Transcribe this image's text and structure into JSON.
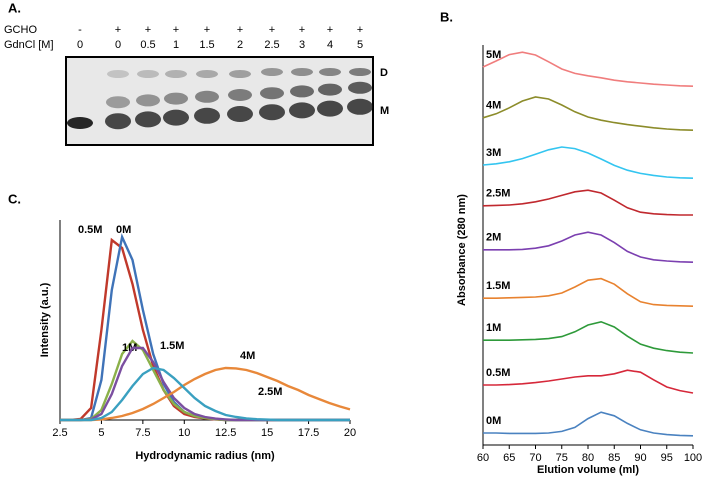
{
  "gel": {
    "title": "A.",
    "rows": [
      {
        "label": "GCHO",
        "lanes": [
          "-",
          "+",
          "+",
          "+",
          "+",
          "+",
          "+",
          "+",
          "+",
          "+"
        ]
      },
      {
        "label": "GdnCl [M]",
        "lanes": [
          "0",
          "0",
          "0.5",
          "1",
          "1.5",
          "2",
          "2.5",
          "3",
          "4",
          "5"
        ]
      }
    ],
    "band_labels": [
      "D",
      "M"
    ]
  },
  "chart_data": [
    {
      "type": "line",
      "title": "B.",
      "x_label": "Elution volume (ml)",
      "y_label": "Absorbance (280 nm)",
      "x": [
        60,
        62.5,
        65,
        67.5,
        70,
        72.5,
        75,
        77.5,
        80,
        82.5,
        85,
        87.5,
        90,
        92.5,
        95,
        97.5,
        100
      ],
      "xlim": [
        60,
        100
      ],
      "xticks": [
        60,
        65,
        70,
        75,
        80,
        85,
        90,
        95,
        100
      ],
      "ylim": [
        0,
        100
      ],
      "series": [
        {
          "name": "5M",
          "color": "#f07d7d",
          "values": [
            94.5,
            96.0,
            97.6,
            98.2,
            97.5,
            95.8,
            94.0,
            92.9,
            92.3,
            91.8,
            91.2,
            90.8,
            90.5,
            90.2,
            90.0,
            89.8,
            89.7
          ]
        },
        {
          "name": "4M",
          "color": "#8c8c2a",
          "values": [
            81.8,
            82.8,
            84.3,
            86.0,
            87.0,
            86.5,
            85.0,
            83.3,
            82.0,
            81.2,
            80.6,
            80.1,
            79.7,
            79.3,
            79.0,
            78.8,
            78.7
          ]
        },
        {
          "name": "3M",
          "color": "#33c5f0",
          "values": [
            70.0,
            70.3,
            70.8,
            71.6,
            72.7,
            73.8,
            74.5,
            74.1,
            73.0,
            71.5,
            69.9,
            68.7,
            67.9,
            67.4,
            67.0,
            66.8,
            66.7
          ]
        },
        {
          "name": "2.5M",
          "color": "#c0282e",
          "values": [
            59.8,
            59.9,
            60.0,
            60.3,
            60.8,
            61.5,
            62.4,
            63.3,
            63.7,
            63.0,
            61.2,
            59.3,
            58.2,
            57.8,
            57.6,
            57.5,
            57.5
          ]
        },
        {
          "name": "2M",
          "color": "#7b3fb0",
          "values": [
            48.8,
            48.8,
            48.8,
            48.9,
            49.2,
            49.8,
            51.0,
            52.5,
            53.2,
            52.5,
            50.6,
            48.4,
            47.0,
            46.3,
            46.0,
            45.8,
            45.7
          ]
        },
        {
          "name": "1.5M",
          "color": "#e8822f",
          "values": [
            36.7,
            36.7,
            36.8,
            36.9,
            37.0,
            37.3,
            38.0,
            39.5,
            41.2,
            41.6,
            40.2,
            37.8,
            35.8,
            35.1,
            34.9,
            34.8,
            34.7
          ]
        },
        {
          "name": "1M",
          "color": "#2e9a3a",
          "values": [
            26.2,
            26.2,
            26.2,
            26.3,
            26.4,
            26.6,
            27.1,
            28.3,
            30.0,
            30.8,
            29.5,
            27.2,
            25.2,
            24.2,
            23.6,
            23.2,
            23.0
          ]
        },
        {
          "name": "0.5M",
          "color": "#d6283a",
          "values": [
            15.0,
            15.0,
            15.1,
            15.3,
            15.6,
            16.0,
            16.5,
            17.0,
            17.3,
            17.3,
            17.8,
            18.7,
            18.2,
            16.3,
            14.5,
            13.6,
            13.0
          ]
        },
        {
          "name": "0M",
          "color": "#4a82c0",
          "values": [
            3.0,
            3.0,
            2.9,
            2.9,
            2.9,
            3.0,
            3.4,
            4.4,
            6.6,
            8.2,
            7.3,
            5.4,
            3.8,
            3.0,
            2.6,
            2.4,
            2.3
          ]
        }
      ]
    },
    {
      "type": "line",
      "title": "C.",
      "x_label": "Hydrodynamic radius (nm)",
      "y_label": "Intensity (a.u.)",
      "x": [
        2.5,
        3.125,
        3.75,
        4.375,
        5,
        5.625,
        6.25,
        6.875,
        7.5,
        8.125,
        8.75,
        9.375,
        10,
        10.625,
        11.25,
        11.875,
        12.5,
        13.125,
        13.75,
        14.375,
        15,
        15.625,
        16.25,
        16.875,
        17.5,
        18.125,
        18.75,
        19.375,
        20
      ],
      "xlim": [
        2.5,
        20
      ],
      "xticks": [
        2.5,
        5,
        7.5,
        10,
        12.5,
        15,
        17.5,
        20
      ],
      "ylim": [
        0,
        100
      ],
      "series": [
        {
          "name": "0.5M",
          "color": "#c0392b",
          "values": [
            0,
            0,
            0.5,
            6,
            45,
            90,
            86,
            68,
            45,
            27,
            15,
            7,
            3,
            1.5,
            0.8,
            0.3,
            0,
            0,
            0,
            0,
            0,
            0,
            0,
            0,
            0,
            0,
            0,
            0,
            0
          ]
        },
        {
          "name": "0M",
          "color": "#3f73b8",
          "values": [
            0,
            0,
            0,
            1,
            20,
            65,
            91.5,
            80,
            55,
            33,
            18,
            9,
            4,
            2,
            1,
            0.5,
            0,
            0,
            0,
            0,
            0,
            0,
            0,
            0,
            0,
            0,
            0,
            0,
            0
          ]
        },
        {
          "name": "1M",
          "color": "#8bb04a",
          "values": [
            0,
            0,
            0,
            0.5,
            5,
            18,
            33,
            39.5,
            35,
            25,
            15,
            8,
            4,
            2,
            1,
            0.5,
            0,
            0,
            0,
            0,
            0,
            0,
            0,
            0,
            0,
            0,
            0,
            0,
            0
          ]
        },
        {
          "name": "1.5M",
          "color": "#7b4fa0",
          "values": [
            0,
            0,
            0,
            0.3,
            3,
            13,
            27,
            36,
            36,
            29,
            19,
            11,
            6,
            3,
            1.5,
            0.7,
            0.3,
            0,
            0,
            0,
            0,
            0,
            0,
            0,
            0,
            0,
            0,
            0,
            0
          ]
        },
        {
          "name": "4M",
          "color": "#e8883a",
          "values": [
            0,
            0,
            0,
            0,
            0.3,
            1,
            2,
            3.5,
            5.5,
            8,
            11,
            14,
            17.5,
            20.5,
            23,
            25,
            26,
            25.8,
            25,
            23.5,
            21.5,
            19.5,
            17,
            15,
            12.5,
            10.5,
            8.5,
            6.8,
            5.3
          ]
        },
        {
          "name": "2.5M",
          "color": "#3aa0c0",
          "values": [
            0,
            0,
            0,
            0,
            1,
            4,
            10,
            17,
            23,
            26,
            25,
            21,
            16,
            11,
            7,
            4.5,
            2.5,
            1.5,
            0.8,
            0.4,
            0.2,
            0,
            0,
            0,
            0,
            0,
            0,
            0,
            0
          ]
        }
      ]
    }
  ]
}
